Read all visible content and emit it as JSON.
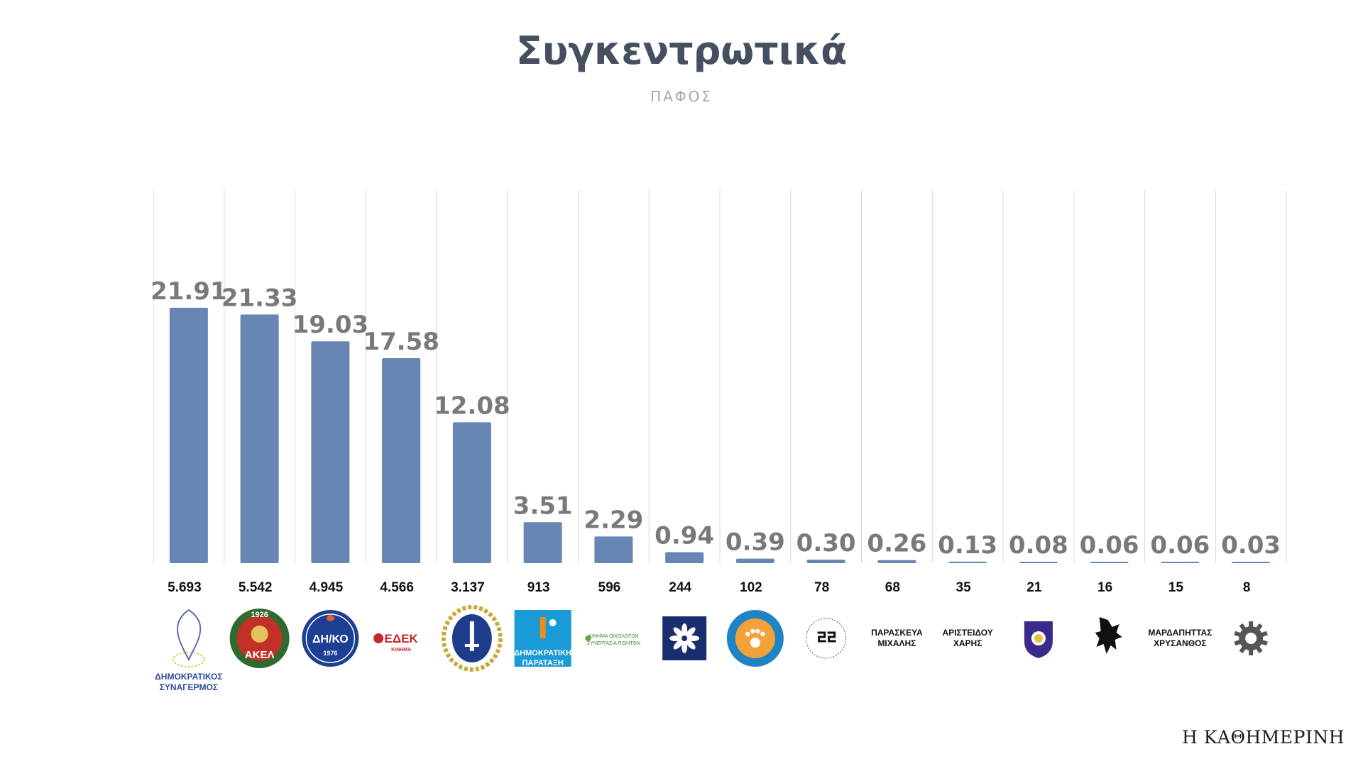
{
  "header": {
    "title": "Συγκεντρωτικά",
    "subtitle": "ΠΑΦΟΣ"
  },
  "brand": "Η ΚΑΘΗΜΕΡΙΝΗ",
  "colors": {
    "bar": "#6886b3",
    "grid": "#d8d8d8",
    "title": "#454f60"
  },
  "chart_data": {
    "type": "bar",
    "title": "Συγκεντρωτικά",
    "subtitle": "ΠΑΦΟΣ",
    "ylim": [
      0,
      32
    ],
    "grid": "vertical",
    "values": [
      21.91,
      21.33,
      19.03,
      17.58,
      12.08,
      3.51,
      2.29,
      0.94,
      0.39,
      0.3,
      0.26,
      0.13,
      0.08,
      0.06,
      0.06,
      0.03
    ],
    "value_labels": [
      "21.91",
      "21.33",
      "19.03",
      "17.58",
      "12.08",
      "3.51",
      "2.29",
      "0.94",
      "0.39",
      "0.30",
      "0.26",
      "0.13",
      "0.08",
      "0.06",
      "0.06",
      "0.03"
    ],
    "votes": [
      "5.693",
      "5.542",
      "4.945",
      "4.566",
      "3.137",
      "913",
      "596",
      "244",
      "102",
      "78",
      "68",
      "35",
      "21",
      "16",
      "15",
      "8"
    ],
    "categories": [
      {
        "logo": "disy-logo",
        "text": [
          "ΔΗΜΟΚΡΑΤΙΚΟΣ",
          "ΣΥΝΑΓΕΡΜΟΣ"
        ]
      },
      {
        "logo": "akel-logo",
        "text": [
          "1926",
          "ΑΚΕΛ"
        ]
      },
      {
        "logo": "diko-logo",
        "text": [
          "ΔΗ/ΚΟ",
          "1976"
        ]
      },
      {
        "logo": "edek-logo",
        "text": [
          "ΕΔΕΚ",
          "ΚΙΝΗΜΑ"
        ]
      },
      {
        "logo": "elam-logo",
        "text": []
      },
      {
        "logo": "dipa-logo",
        "text": [
          "ΔΗΜΟΚΡΑΤΙΚΗ",
          "ΠΑΡΑΤΑΞΗ"
        ]
      },
      {
        "logo": "citizens-alliance-logo",
        "text": [
          "ΚΙΝΗΜΑ ΟΙΚΟΛΟΓΩΝ",
          "ΣΥΝΕΡΓΑΣΙΑ ΠΟΛΙΤΩΝ"
        ]
      },
      {
        "logo": "flower-logo",
        "text": []
      },
      {
        "logo": "animal-party-logo",
        "text": []
      },
      {
        "logo": "circle-emblem-logo",
        "text": []
      },
      {
        "logo": "",
        "text": [
          "ΠΑΡΑΣΚΕΥΑ",
          "ΜΙΧΑΛΗΣ"
        ]
      },
      {
        "logo": "",
        "text": [
          "ΑΡΙΣΤΕΙΔΟΥ",
          "ΧΑΡΗΣ"
        ]
      },
      {
        "logo": "shield-logo",
        "text": []
      },
      {
        "logo": "lion-logo",
        "text": []
      },
      {
        "logo": "",
        "text": [
          "ΜΑΡΔΑΠΗΤΤΑΣ",
          "ΧΡΥΣΑΝΘΟΣ"
        ]
      },
      {
        "logo": "gear-logo",
        "text": []
      }
    ]
  }
}
